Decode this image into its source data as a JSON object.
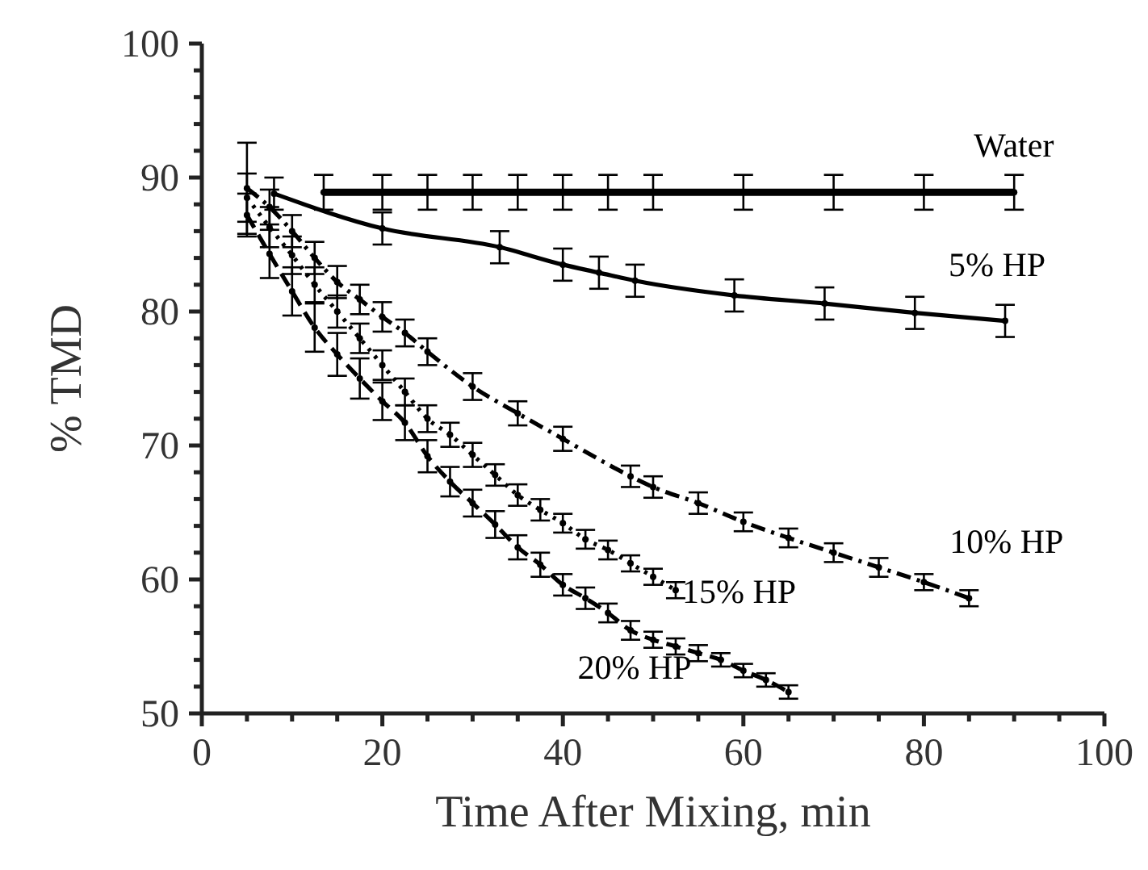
{
  "chart_data": {
    "type": "line",
    "xlabel": "Time After Mixing, min",
    "ylabel": "% TMD",
    "xlim": [
      0,
      100
    ],
    "ylim": [
      50,
      100
    ],
    "xticks": [
      0,
      {
        "value": 5,
        "label": null
      },
      {
        "value": 10,
        "label": null
      },
      {
        "value": 15,
        "label": null
      },
      20,
      {
        "value": 25,
        "label": null
      },
      {
        "value": 30,
        "label": null
      },
      {
        "value": 35,
        "label": null
      },
      40,
      {
        "value": 45,
        "label": null
      },
      {
        "value": 50,
        "label": null
      },
      {
        "value": 55,
        "label": null
      },
      60,
      {
        "value": 65,
        "label": null
      },
      {
        "value": 70,
        "label": null
      },
      {
        "value": 75,
        "label": null
      },
      80,
      {
        "value": 85,
        "label": null
      },
      {
        "value": 90,
        "label": null
      },
      {
        "value": 95,
        "label": null
      },
      100
    ],
    "yticks": [
      50,
      {
        "value": 52,
        "label": null
      },
      {
        "value": 54,
        "label": null
      },
      {
        "value": 56,
        "label": null
      },
      {
        "value": 58,
        "label": null
      },
      60,
      {
        "value": 62,
        "label": null
      },
      {
        "value": 64,
        "label": null
      },
      {
        "value": 66,
        "label": null
      },
      {
        "value": 68,
        "label": null
      },
      70,
      {
        "value": 72,
        "label": null
      },
      {
        "value": 74,
        "label": null
      },
      {
        "value": 76,
        "label": null
      },
      {
        "value": 78,
        "label": null
      },
      80,
      {
        "value": 82,
        "label": null
      },
      {
        "value": 84,
        "label": null
      },
      {
        "value": 86,
        "label": null
      },
      {
        "value": 88,
        "label": null
      },
      90,
      {
        "value": 92,
        "label": null
      },
      {
        "value": 94,
        "label": null
      },
      {
        "value": 96,
        "label": null
      },
      {
        "value": 98,
        "label": null
      },
      100
    ],
    "grid": false,
    "marker": "circle",
    "series": [
      {
        "name": "Water",
        "color": "#000000",
        "line_style": "solid",
        "x": [
          13.5,
          20,
          25,
          30,
          35,
          40,
          45,
          50,
          60,
          70,
          80,
          90
        ],
        "values": [
          88.9,
          88.9,
          88.9,
          88.9,
          88.9,
          88.9,
          88.9,
          88.9,
          88.9,
          88.9,
          88.9,
          88.9
        ],
        "errors": [
          1.3,
          1.3,
          1.3,
          1.3,
          1.3,
          1.3,
          1.3,
          1.3,
          1.3,
          1.3,
          1.3,
          1.3
        ]
      },
      {
        "name": "5% HP",
        "color": "#000000",
        "line_style": "solid",
        "x": [
          8,
          20,
          33,
          40,
          44,
          48,
          59,
          69,
          79,
          89
        ],
        "values": [
          88.8,
          86.2,
          84.8,
          83.5,
          82.9,
          82.3,
          81.2,
          80.6,
          79.9,
          79.3
        ],
        "errors": [
          1.2,
          1.2,
          1.2,
          1.2,
          1.2,
          1.2,
          1.2,
          1.2,
          1.2,
          1.2
        ]
      },
      {
        "name": "10% HP",
        "color": "#000000",
        "line_style": "dashdot",
        "x": [
          5,
          7.5,
          10,
          12.5,
          15,
          17.5,
          20,
          22.5,
          25,
          30,
          35,
          40,
          47.5,
          50,
          55,
          60,
          65,
          70,
          75,
          80,
          85
        ],
        "values": [
          89.2,
          87.8,
          86.0,
          84.0,
          82.2,
          80.9,
          79.6,
          78.4,
          77.0,
          74.4,
          72.4,
          70.5,
          67.7,
          66.9,
          65.7,
          64.3,
          63.1,
          62.0,
          60.9,
          59.8,
          58.6
        ],
        "errors": [
          3.4,
          1.3,
          1.2,
          1.2,
          1.2,
          1.1,
          1.1,
          1,
          1,
          1,
          0.9,
          0.9,
          0.8,
          0.8,
          0.8,
          0.7,
          0.7,
          0.7,
          0.7,
          0.6,
          0.6
        ]
      },
      {
        "name": "15% HP",
        "color": "#000000",
        "line_style": "dotted",
        "x": [
          5,
          7.5,
          10,
          12.5,
          15,
          17.5,
          20,
          22.5,
          25,
          27.5,
          30,
          32.5,
          35,
          37.5,
          40,
          42.5,
          45,
          47.5,
          50,
          52.5
        ],
        "values": [
          88.5,
          86.3,
          84.2,
          82.0,
          80.0,
          78.0,
          76.0,
          74.0,
          72.0,
          70.8,
          69.3,
          67.8,
          66.3,
          65.2,
          64.2,
          63.0,
          62.2,
          61.2,
          60.2,
          59.2
        ],
        "errors": [
          1.8,
          1.5,
          1.4,
          1.3,
          1.2,
          1.1,
          1.1,
          1,
          1,
          0.9,
          0.9,
          0.8,
          0.8,
          0.8,
          0.7,
          0.7,
          0.7,
          0.6,
          0.6,
          0.6
        ]
      },
      {
        "name": "20% HP",
        "color": "#000000",
        "line_style": "dashed",
        "x": [
          5,
          7.5,
          10,
          12.5,
          15,
          17.5,
          20,
          22.5,
          25,
          27.5,
          30,
          32.5,
          35,
          37.5,
          40,
          42.5,
          45,
          47.5,
          50,
          52.5,
          55,
          57.5,
          60,
          62.5,
          65
        ],
        "values": [
          87.2,
          84.3,
          81.5,
          78.8,
          76.8,
          75.0,
          73.3,
          71.7,
          69.2,
          67.3,
          65.7,
          64.1,
          62.4,
          61.1,
          59.6,
          58.6,
          57.5,
          56.2,
          55.5,
          55.0,
          54.5,
          54.0,
          53.2,
          52.5,
          51.6
        ],
        "errors": [
          1.6,
          1.8,
          1.8,
          1.8,
          1.6,
          1.5,
          1.4,
          1.3,
          1.2,
          1.1,
          1,
          1,
          0.9,
          0.9,
          0.8,
          0.8,
          0.7,
          0.7,
          0.6,
          0.6,
          0.6,
          0.5,
          0.5,
          0.5,
          0.5
        ]
      }
    ]
  }
}
